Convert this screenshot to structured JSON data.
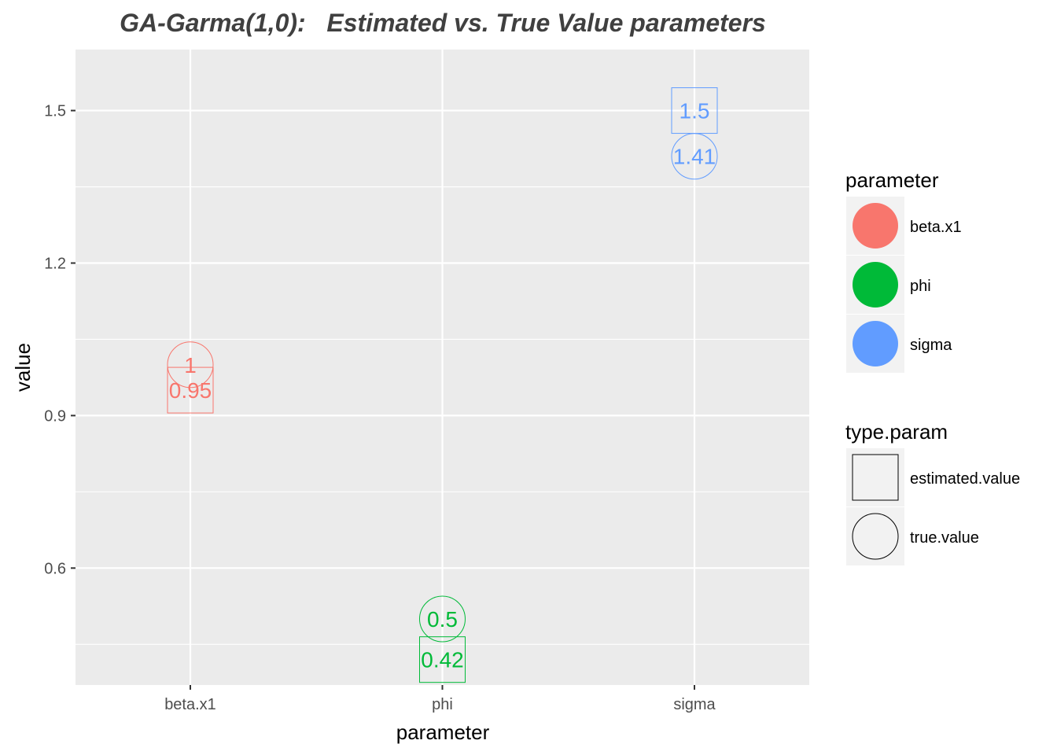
{
  "chart_data": {
    "type": "scatter",
    "title": "GA-Garma(1,0):   Estimated vs. True Value parameters",
    "xlabel": "parameter",
    "ylabel": "value",
    "categories": [
      "beta.x1",
      "phi",
      "sigma"
    ],
    "ylim": [
      0.37,
      1.62
    ],
    "yticks": [
      0.6,
      0.9,
      1.2,
      1.5
    ],
    "grid": true,
    "series": [
      {
        "name": "estimated.value",
        "shape": "square",
        "values": [
          0.95,
          0.42,
          1.5
        ],
        "labels": [
          "0.95",
          "0.42",
          "1.5"
        ]
      },
      {
        "name": "true.value",
        "shape": "circle",
        "values": [
          1,
          0.5,
          1.41
        ],
        "labels": [
          "1",
          "0.5",
          "1.41"
        ]
      }
    ],
    "legends": [
      {
        "title": "parameter",
        "items": [
          {
            "label": "beta.x1",
            "color": "#F8766D"
          },
          {
            "label": "phi",
            "color": "#00BA38"
          },
          {
            "label": "sigma",
            "color": "#619CFF"
          }
        ]
      },
      {
        "title": "type.param",
        "items": [
          {
            "label": "estimated.value",
            "shape": "square"
          },
          {
            "label": "true.value",
            "shape": "circle"
          }
        ]
      }
    ],
    "legend_position": "right",
    "colors": {
      "beta.x1": "#F8766D",
      "phi": "#00BA38",
      "sigma": "#619CFF",
      "panel_background": "#EBEBEB",
      "grid": "#FFFFFF"
    }
  }
}
